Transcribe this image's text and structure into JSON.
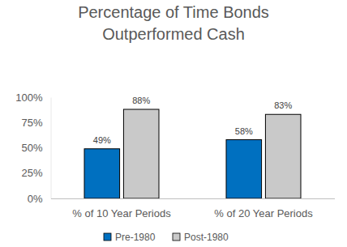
{
  "chart_data": {
    "type": "bar",
    "title": "Percentage of Time Bonds\nOutperformed Cash",
    "categories": [
      "% of 10 Year Periods",
      "% of 20 Year Periods"
    ],
    "series": [
      {
        "name": "Pre-1980",
        "color": "#0070c0",
        "values": [
          49,
          58
        ],
        "value_labels": [
          "49%",
          "58%"
        ]
      },
      {
        "name": "Post-1980",
        "color": "#c9c9c9",
        "values": [
          88,
          83
        ],
        "value_labels": [
          "88%",
          "83%"
        ]
      }
    ],
    "ylim": [
      0,
      100
    ],
    "yticks": [
      {
        "value": 0,
        "label": "0%"
      },
      {
        "value": 25,
        "label": "25%"
      },
      {
        "value": 50,
        "label": "50%"
      },
      {
        "value": 75,
        "label": "75%"
      },
      {
        "value": 100,
        "label": "100%"
      }
    ],
    "grid": false,
    "legend": "bottom",
    "data_labels": true
  }
}
